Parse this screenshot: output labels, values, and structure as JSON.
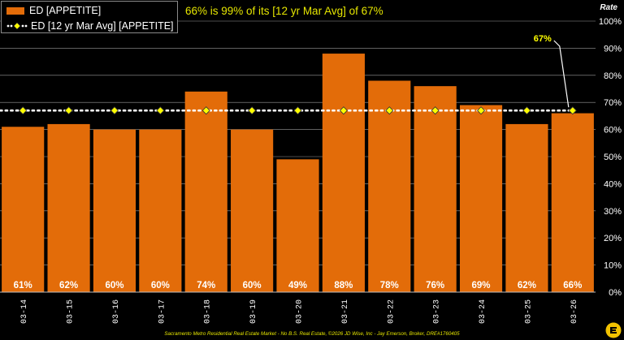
{
  "chart_data": {
    "type": "bar",
    "subtitle": "66% is 99% of its [12 yr Mar Avg] of 67%",
    "ylabel": "Rate",
    "ylim": [
      0,
      100
    ],
    "yticks": [
      "0%",
      "10%",
      "20%",
      "30%",
      "40%",
      "50%",
      "60%",
      "70%",
      "80%",
      "90%",
      "100%"
    ],
    "categories": [
      "03-14",
      "03-15",
      "03-16",
      "03-17",
      "03-18",
      "03-19",
      "03-20",
      "03-21",
      "03-22",
      "03-23",
      "03-24",
      "03-25",
      "03-26"
    ],
    "series": [
      {
        "name": "ED [APPETITE]",
        "type": "bar",
        "color": "#e36c09",
        "values": [
          61,
          62,
          60,
          60,
          74,
          60,
          49,
          88,
          78,
          76,
          69,
          62,
          66
        ],
        "labels": [
          "61%",
          "62%",
          "60%",
          "60%",
          "74%",
          "60%",
          "49%",
          "88%",
          "78%",
          "76%",
          "69%",
          "62%",
          "66%"
        ]
      },
      {
        "name": "ED [12 yr Mar Avg] [APPETITE]",
        "type": "dotted-line",
        "color": "#ffffff",
        "marker_color": "#ffff00",
        "values": [
          67,
          67,
          67,
          67,
          67,
          67,
          67,
          67,
          67,
          67,
          67,
          67,
          67
        ]
      }
    ],
    "annotation": {
      "text": "67%",
      "category": "03-26",
      "value": 67,
      "color": "#ffff00"
    },
    "grid": true,
    "legend": "top-left",
    "footer": "Sacramento Metro Residential Real Estate Market - No B.S. Real Estate, ©2026 JD Wise, Inc - Jay Emerson, Broker, DRE#1760405"
  }
}
